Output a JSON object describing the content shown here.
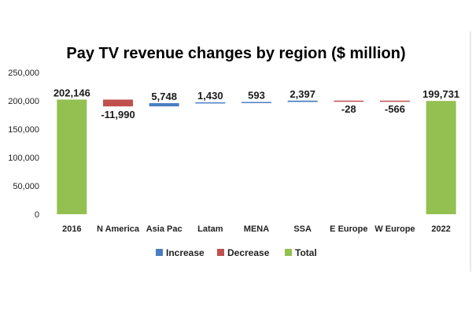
{
  "chart_data": {
    "type": "waterfall",
    "title": "Pay TV revenue changes by region ($ million)",
    "xlabel": "",
    "ylabel": "",
    "ylim": [
      0,
      250000
    ],
    "yticks": [
      0,
      50000,
      100000,
      150000,
      200000,
      250000
    ],
    "ytick_labels": [
      "0",
      "50,000",
      "100,000",
      "150,000",
      "200,000",
      "250,000"
    ],
    "grid": false,
    "legend_position": "bottom",
    "categories": [
      "2016",
      "N America",
      "Asia Pac",
      "Latam",
      "MENA",
      "SSA",
      "E Europe",
      "W Europe",
      "2022"
    ],
    "values": [
      202146,
      -11990,
      5748,
      1430,
      593,
      2397,
      -28,
      -566,
      199731
    ],
    "kinds": [
      "total",
      "decrease",
      "increase",
      "increase",
      "increase",
      "increase",
      "decrease",
      "decrease",
      "total"
    ],
    "labels": [
      "202,146",
      "-11,990",
      "5,748",
      "1,430",
      "593",
      "2,397",
      "-28",
      "-566",
      "199,731"
    ],
    "legend": [
      {
        "name": "Increase",
        "color": "#4a7ec2"
      },
      {
        "name": "Decrease",
        "color": "#c0504d"
      },
      {
        "name": "Total",
        "color": "#93c050"
      }
    ]
  }
}
